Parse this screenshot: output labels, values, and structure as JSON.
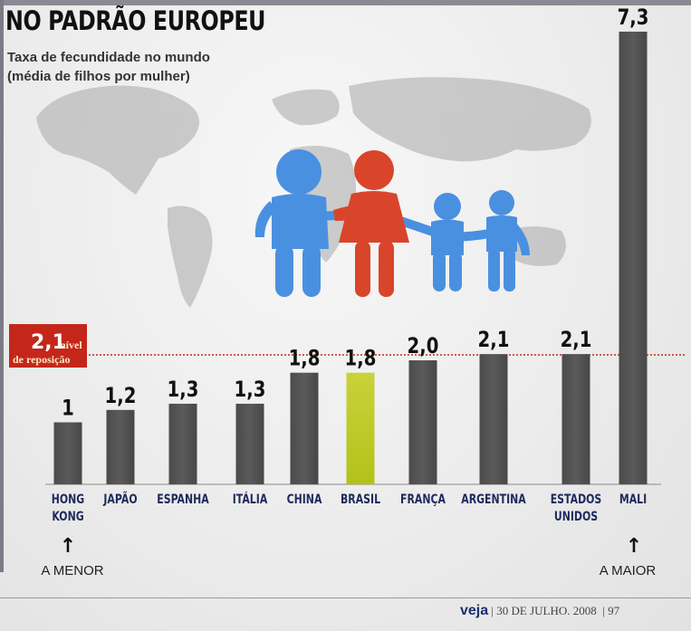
{
  "header": {
    "title": "NO PADRÃO EUROPEU",
    "subtitle_line1": "Taxa de fecundidade no mundo",
    "subtitle_line2": "(média de filhos por mulher)"
  },
  "reference": {
    "value_label": "2,1",
    "label_word": "nível",
    "label_line2": "de reposição",
    "color": "#c4271a"
  },
  "annotations": {
    "min_label": "A MENOR",
    "max_label": "A MAIOR",
    "arrow": "↑"
  },
  "footer": {
    "brand": "veja",
    "date": "30 DE JULHO. 2008",
    "page": "97"
  },
  "colors": {
    "bar": "#5a5a5a",
    "highlight_bar": "#b2c21a",
    "category_text": "#1e2a5c",
    "value_text": "#111111",
    "person_blue": "#4a90e0",
    "person_red": "#d9452a"
  },
  "chart_data": {
    "type": "bar",
    "title": "NO PADRÃO EUROPEU",
    "categories": [
      "HONG KONG",
      "JAPÃO",
      "ESPANHA",
      "ITÁLIA",
      "CHINA",
      "BRASIL",
      "FRANÇA",
      "ARGENTINA",
      "ESTADOS UNIDOS",
      "MALI"
    ],
    "category_lines": [
      [
        "HONG",
        "KONG"
      ],
      [
        "JAPÃO"
      ],
      [
        "ESPANHA"
      ],
      [
        "ITÁLIA"
      ],
      [
        "CHINA"
      ],
      [
        "BRASIL"
      ],
      [
        "FRANÇA"
      ],
      [
        "ARGENTINA"
      ],
      [
        "ESTADOS",
        "UNIDOS"
      ],
      [
        "MALI"
      ]
    ],
    "values": [
      1.0,
      1.2,
      1.3,
      1.3,
      1.8,
      1.8,
      2.0,
      2.1,
      2.1,
      7.3
    ],
    "value_labels": [
      "1",
      "1,2",
      "1,3",
      "1,3",
      "1,8",
      "1,8",
      "2,0",
      "2,1",
      "2,1",
      "7,3"
    ],
    "highlight": "BRASIL",
    "reference_line": 2.1,
    "ylim": [
      0,
      7.3
    ],
    "xlabel": "",
    "ylabel": "",
    "grid": false,
    "legend": "none"
  }
}
